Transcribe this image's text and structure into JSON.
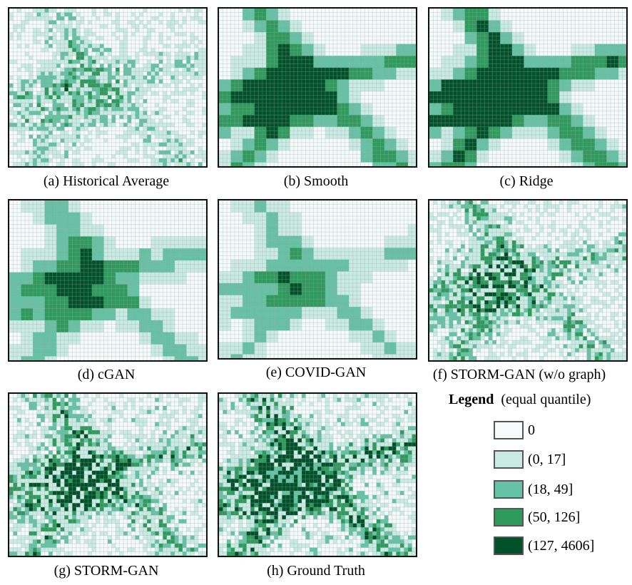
{
  "colors": {
    "class0": "#f5fbfa",
    "class1": "#c9ebe3",
    "class2": "#66c2a4",
    "class3": "#2e9a5c",
    "class4": "#00512a",
    "grid": "#9aa4a0",
    "frame": "#111111"
  },
  "panels": [
    {
      "id": "a",
      "caption": "(a) Historical Average"
    },
    {
      "id": "b",
      "caption": "(b) Smooth"
    },
    {
      "id": "c",
      "caption": "(c) Ridge"
    },
    {
      "id": "d",
      "caption": "(d) cGAN"
    },
    {
      "id": "e",
      "caption": "(e) COVID-GAN"
    },
    {
      "id": "f",
      "caption": "(f) STORM-GAN (w/o graph)"
    },
    {
      "id": "g",
      "caption": "(g) STORM-GAN"
    },
    {
      "id": "h",
      "caption": "(h) Ground Truth"
    }
  ],
  "legend": {
    "title": "Legend",
    "subtitle": "(equal quantile)",
    "items": [
      "0",
      "(0, 17]",
      "(18, 49]",
      "(50, 126]",
      "(127, 4606]"
    ]
  }
}
